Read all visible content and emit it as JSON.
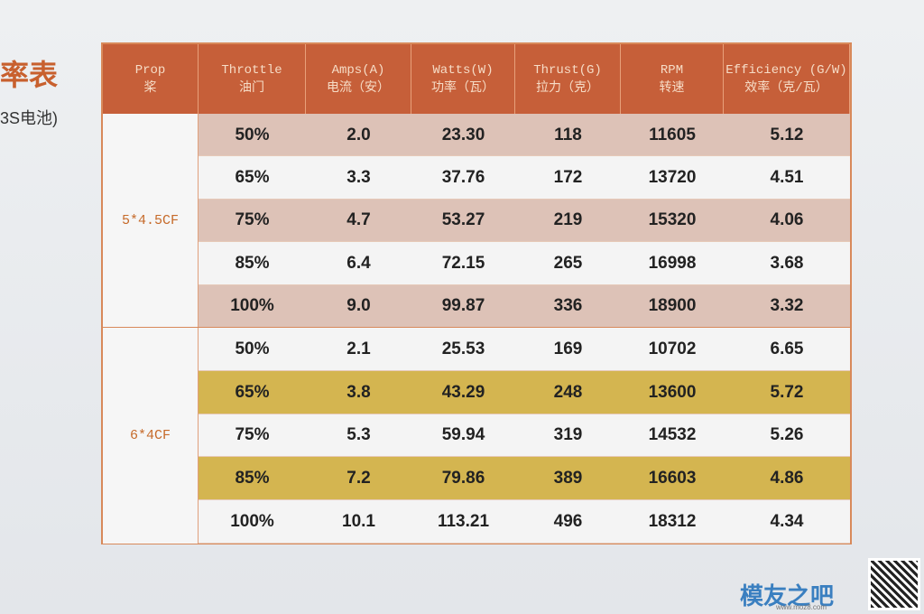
{
  "side_title": "率表",
  "side_subtitle": "3S电池)",
  "table": {
    "header": [
      {
        "en": "Prop",
        "zh": "桨"
      },
      {
        "en": "Throttle",
        "zh": "油门"
      },
      {
        "en": "Amps(A)",
        "zh": "电流（安）"
      },
      {
        "en": "Watts(W)",
        "zh": "功率（瓦）"
      },
      {
        "en": "Thrust(G)",
        "zh": "拉力（克）"
      },
      {
        "en": "RPM",
        "zh": "转速"
      },
      {
        "en": "Efficiency (G/W)",
        "zh": "效率（克/瓦）"
      }
    ],
    "groups": [
      {
        "prop": "5*4.5CF",
        "rows": [
          [
            "50%",
            "2.0",
            "23.30",
            "118",
            "11605",
            "5.12"
          ],
          [
            "65%",
            "3.3",
            "37.76",
            "172",
            "13720",
            "4.51"
          ],
          [
            "75%",
            "4.7",
            "53.27",
            "219",
            "15320",
            "4.06"
          ],
          [
            "85%",
            "6.4",
            "72.15",
            "265",
            "16998",
            "3.68"
          ],
          [
            "100%",
            "9.0",
            "99.87",
            "336",
            "18900",
            "3.32"
          ]
        ]
      },
      {
        "prop": "6*4CF",
        "rows": [
          [
            "50%",
            "2.1",
            "25.53",
            "169",
            "10702",
            "6.65"
          ],
          [
            "65%",
            "3.8",
            "43.29",
            "248",
            "13600",
            "5.72"
          ],
          [
            "75%",
            "5.3",
            "59.94",
            "319",
            "14532",
            "5.26"
          ],
          [
            "85%",
            "7.2",
            "79.86",
            "389",
            "16603",
            "4.86"
          ],
          [
            "100%",
            "10.1",
            "113.21",
            "496",
            "18312",
            "4.34"
          ]
        ]
      }
    ]
  },
  "watermark": {
    "brand": "模友之吧",
    "site": "www.moz8.com"
  }
}
